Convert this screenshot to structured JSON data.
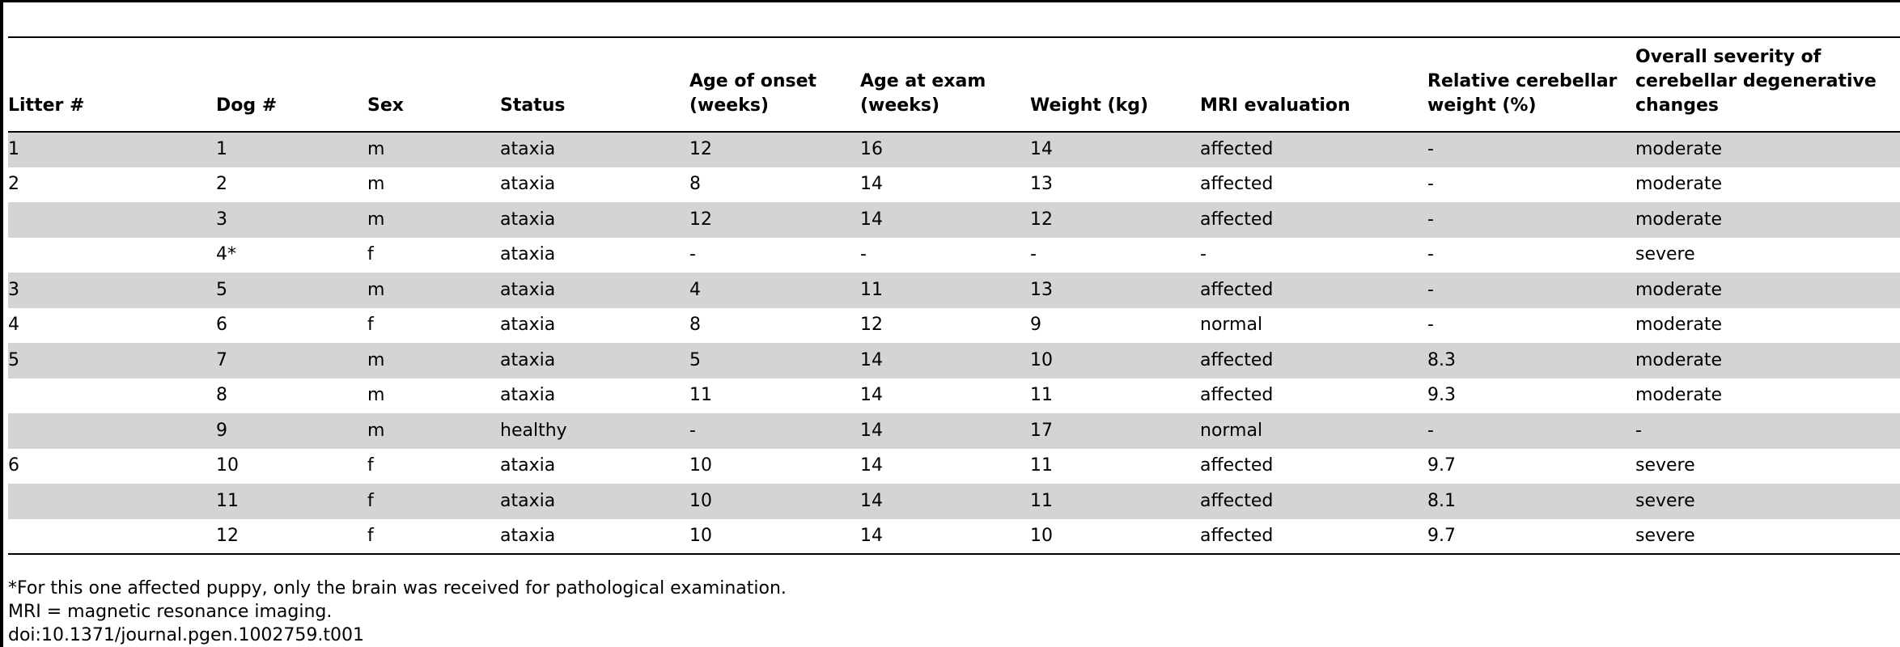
{
  "table": {
    "columns": [
      "Litter #",
      "Dog #",
      "Sex",
      "Status",
      "Age of onset (weeks)",
      "Age at exam (weeks)",
      "Weight (kg)",
      "MRI evaluation",
      "Relative cerebellar weight (%)",
      "Overall severity of cerebellar degenerative changes"
    ],
    "rows": [
      [
        "1",
        "1",
        "m",
        "ataxia",
        "12",
        "16",
        "14",
        "affected",
        "-",
        "moderate"
      ],
      [
        "2",
        "2",
        "m",
        "ataxia",
        "8",
        "14",
        "13",
        "affected",
        "-",
        "moderate"
      ],
      [
        "",
        "3",
        "m",
        "ataxia",
        "12",
        "14",
        "12",
        "affected",
        "-",
        "moderate"
      ],
      [
        "",
        "4*",
        "f",
        "ataxia",
        "-",
        "-",
        "-",
        "-",
        "-",
        "severe"
      ],
      [
        "3",
        "5",
        "m",
        "ataxia",
        "4",
        "11",
        "13",
        "affected",
        "-",
        "moderate"
      ],
      [
        "4",
        "6",
        "f",
        "ataxia",
        "8",
        "12",
        "9",
        "normal",
        "-",
        "moderate"
      ],
      [
        "5",
        "7",
        "m",
        "ataxia",
        "5",
        "14",
        "10",
        "affected",
        "8.3",
        "moderate"
      ],
      [
        "",
        "8",
        "m",
        "ataxia",
        "11",
        "14",
        "11",
        "affected",
        "9.3",
        "moderate"
      ],
      [
        "",
        "9",
        "m",
        "healthy",
        "-",
        "14",
        "17",
        "normal",
        "-",
        "-"
      ],
      [
        "6",
        "10",
        "f",
        "ataxia",
        "10",
        "14",
        "11",
        "affected",
        "9.7",
        "severe"
      ],
      [
        "",
        "11",
        "f",
        "ataxia",
        "10",
        "14",
        "11",
        "affected",
        "8.1",
        "severe"
      ],
      [
        "",
        "12",
        "f",
        "ataxia",
        "10",
        "14",
        "10",
        "affected",
        "9.7",
        "severe"
      ]
    ]
  },
  "footnotes": [
    "*For this one affected puppy, only the brain was received for pathological examination.",
    "MRI = magnetic resonance imaging.",
    "doi:10.1371/journal.pgen.1002759.t001"
  ]
}
